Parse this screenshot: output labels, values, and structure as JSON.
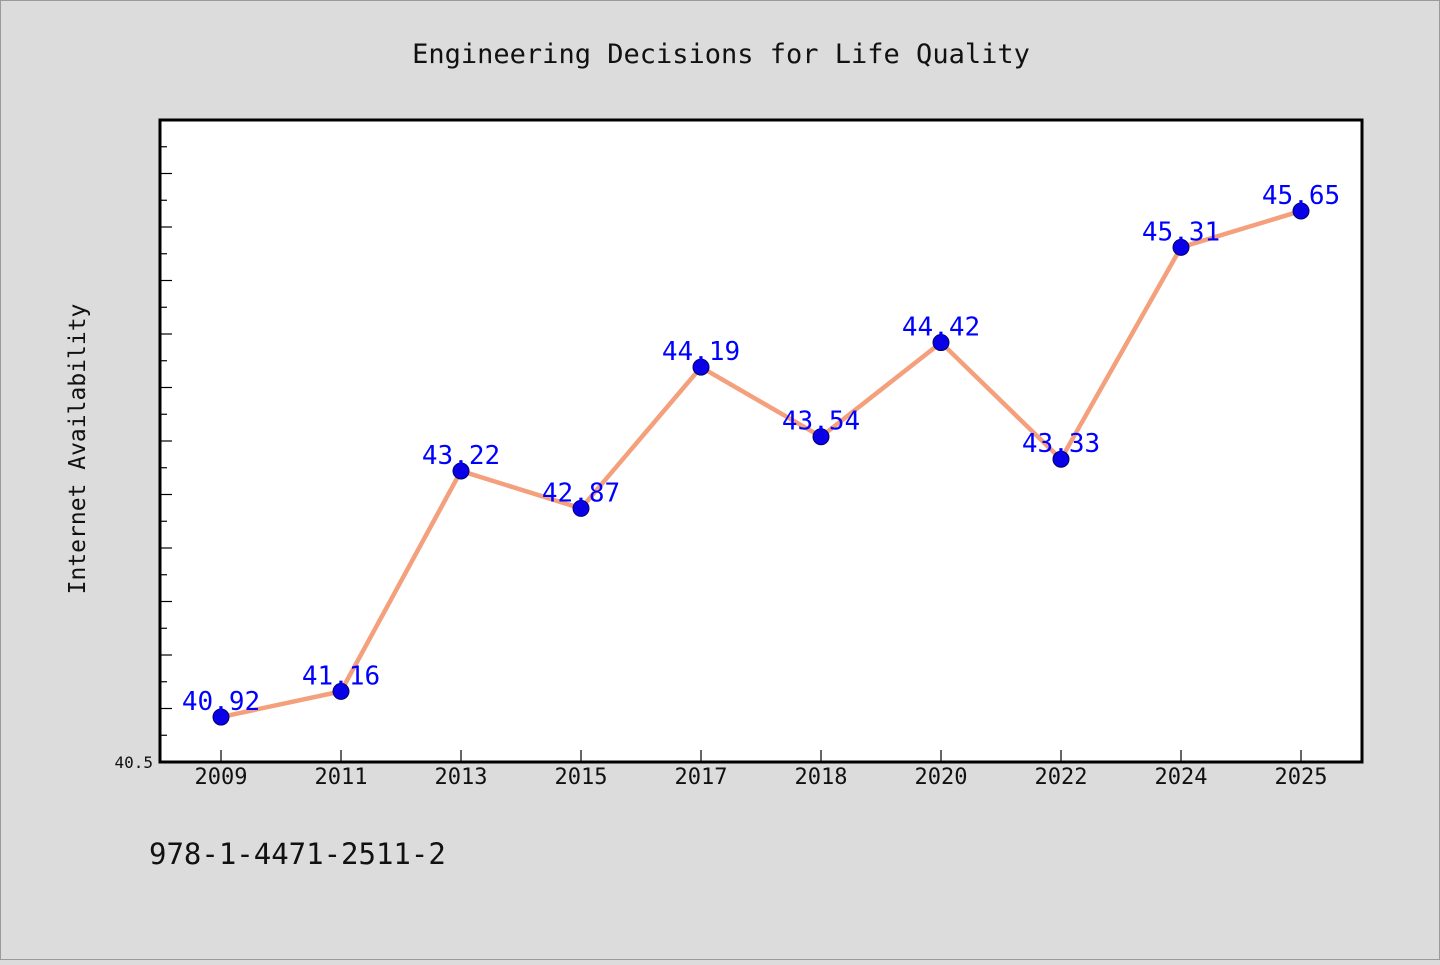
{
  "chart_data": {
    "type": "line",
    "title": "Engineering Decisions for Life Quality",
    "xlabel": "",
    "ylabel": "Internet Availability",
    "categories": [
      "2009",
      "2011",
      "2013",
      "2015",
      "2017",
      "2018",
      "2020",
      "2022",
      "2024",
      "2025"
    ],
    "series": [
      {
        "values": [
          40.92,
          41.16,
          43.22,
          42.87,
          44.19,
          43.54,
          44.42,
          43.33,
          45.31,
          45.65
        ]
      }
    ],
    "ylim": [
      40.5,
      46.5
    ],
    "y_tick_labels": [
      "40.5"
    ],
    "grid": false,
    "legend": "none",
    "line_color": "#f4a07c",
    "marker_color": "#0a00e8",
    "label_color": "#0000ff",
    "background_color": "#dcdcdc",
    "plot_background": "#ffffff"
  },
  "footer": {
    "isbn": "978-1-4471-2511-2"
  }
}
